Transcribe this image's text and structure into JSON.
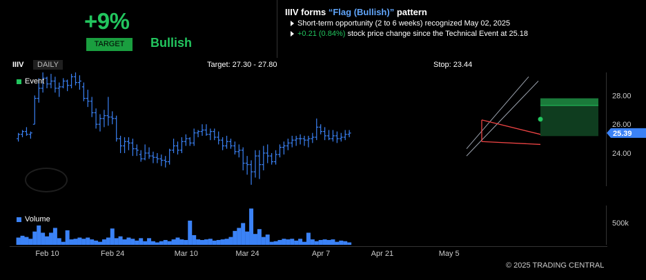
{
  "header": {
    "target_pct": "+9%",
    "target_badge": "TARGET",
    "sentiment": "Bullish",
    "title_prefix": "IIIV forms ",
    "title_pattern": "“Flag (Bullish)”",
    "title_suffix": " pattern",
    "line1": "Short-term opportunity (2 to 6 weeks) recognized May 02, 2025",
    "line2_change": "+0.21 (0.84%)",
    "line2_rest": " stock price change since the Technical Event at 25.18"
  },
  "chart_bar": {
    "ticker": "IIIV",
    "period": "DAILY",
    "target_text": "Target: 27.30 - 27.80",
    "stop_text": "Stop: 23.44"
  },
  "legend": {
    "event": "Event",
    "volume": "Volume"
  },
  "copyright": "© 2025 TRADING CENTRAL",
  "colors": {
    "bar": "#3b82f6",
    "up": "#22c55e",
    "pattern": "#ef4444",
    "channel": "#9ca3af"
  },
  "chart_data": {
    "type": "bar",
    "title": "",
    "x_ticks": [
      "Feb 10",
      "Feb 24",
      "Mar 10",
      "Mar 24",
      "Apr 7",
      "Apr 21",
      "May 5"
    ],
    "price_axis": {
      "ticks": [
        "24.00",
        "26.00",
        "28.00"
      ],
      "ylim": [
        21.7,
        29.6
      ],
      "current_label": "25.39"
    },
    "volume_axis": {
      "ticks": [
        "500k"
      ]
    },
    "ohlc": [
      [
        25.0,
        25.4,
        24.8,
        25.3
      ],
      [
        25.3,
        25.6,
        25.1,
        25.5
      ],
      [
        25.5,
        25.8,
        25.2,
        25.3
      ],
      [
        25.3,
        25.5,
        25.0,
        25.4
      ],
      [
        26.0,
        28.0,
        26.0,
        27.8
      ],
      [
        27.8,
        29.2,
        27.5,
        28.5
      ],
      [
        28.5,
        29.6,
        28.2,
        29.2
      ],
      [
        29.2,
        29.3,
        28.5,
        28.8
      ],
      [
        28.8,
        29.5,
        28.5,
        29.0
      ],
      [
        29.0,
        29.3,
        28.2,
        28.5
      ],
      [
        28.5,
        28.9,
        27.9,
        28.6
      ],
      [
        28.6,
        29.2,
        28.5,
        29.0
      ],
      [
        29.0,
        29.1,
        28.3,
        28.7
      ],
      [
        28.7,
        29.5,
        28.5,
        29.3
      ],
      [
        29.3,
        29.6,
        28.7,
        28.9
      ],
      [
        28.9,
        29.4,
        28.4,
        29.0
      ],
      [
        28.6,
        28.9,
        27.6,
        27.8
      ],
      [
        27.8,
        28.4,
        27.2,
        27.6
      ],
      [
        27.6,
        27.9,
        26.5,
        26.8
      ],
      [
        26.8,
        27.1,
        25.7,
        26.0
      ],
      [
        26.0,
        26.7,
        25.5,
        26.4
      ],
      [
        26.4,
        27.0,
        25.8,
        26.6
      ],
      [
        26.6,
        27.9,
        25.9,
        26.5
      ],
      [
        26.5,
        26.9,
        26.0,
        26.4
      ],
      [
        26.4,
        26.6,
        24.8,
        25.0
      ],
      [
        25.0,
        25.2,
        24.0,
        24.5
      ],
      [
        24.5,
        25.1,
        24.0,
        24.8
      ],
      [
        24.8,
        25.1,
        24.2,
        24.7
      ],
      [
        24.7,
        25.0,
        23.8,
        24.3
      ],
      [
        24.3,
        24.6,
        23.8,
        24.2
      ],
      [
        23.9,
        24.2,
        23.4,
        23.6
      ],
      [
        23.6,
        24.6,
        23.5,
        24.0
      ],
      [
        24.0,
        24.4,
        23.6,
        23.8
      ],
      [
        23.8,
        24.1,
        23.3,
        23.7
      ],
      [
        23.7,
        24.0,
        23.3,
        23.6
      ],
      [
        23.6,
        23.9,
        23.1,
        23.5
      ],
      [
        23.5,
        23.8,
        23.0,
        23.4
      ],
      [
        23.4,
        24.3,
        23.2,
        24.2
      ],
      [
        24.2,
        25.0,
        24.0,
        24.5
      ],
      [
        24.5,
        24.8,
        23.9,
        24.2
      ],
      [
        24.2,
        25.1,
        24.0,
        24.8
      ],
      [
        24.8,
        25.3,
        24.5,
        25.0
      ],
      [
        25.0,
        25.1,
        24.5,
        24.7
      ],
      [
        24.7,
        25.7,
        24.5,
        25.4
      ],
      [
        25.4,
        25.6,
        25.1,
        25.5
      ],
      [
        25.5,
        26.0,
        25.2,
        25.6
      ],
      [
        25.6,
        26.0,
        25.2,
        25.3
      ],
      [
        25.3,
        25.7,
        24.9,
        25.5
      ],
      [
        25.5,
        25.7,
        24.9,
        25.1
      ],
      [
        25.1,
        25.5,
        24.6,
        24.9
      ],
      [
        24.9,
        25.1,
        24.2,
        24.5
      ],
      [
        24.5,
        25.2,
        24.3,
        24.8
      ],
      [
        24.8,
        25.0,
        24.3,
        24.5
      ],
      [
        24.5,
        24.8,
        23.9,
        24.1
      ],
      [
        24.1,
        24.6,
        23.7,
        24.2
      ],
      [
        24.2,
        24.4,
        22.8,
        23.3
      ],
      [
        23.3,
        23.8,
        22.5,
        23.2
      ],
      [
        23.2,
        23.5,
        21.8,
        22.7
      ],
      [
        22.7,
        24.2,
        22.3,
        23.8
      ],
      [
        23.8,
        24.2,
        22.2,
        23.2
      ],
      [
        23.2,
        24.5,
        22.8,
        24.0
      ],
      [
        24.0,
        24.6,
        23.3,
        23.8
      ],
      [
        23.8,
        24.0,
        23.2,
        23.4
      ],
      [
        23.4,
        24.2,
        23.2,
        23.9
      ],
      [
        23.9,
        24.6,
        23.7,
        24.4
      ],
      [
        24.4,
        24.8,
        23.9,
        24.5
      ],
      [
        24.5,
        25.0,
        24.2,
        24.7
      ],
      [
        24.7,
        25.2,
        24.4,
        24.9
      ],
      [
        24.9,
        25.2,
        24.5,
        25.0
      ],
      [
        25.0,
        25.3,
        24.6,
        25.0
      ],
      [
        25.0,
        25.2,
        24.5,
        24.9
      ],
      [
        24.9,
        25.2,
        24.4,
        25.0
      ],
      [
        25.0,
        25.4,
        24.7,
        25.1
      ],
      [
        25.1,
        26.4,
        24.9,
        25.8
      ],
      [
        25.8,
        26.0,
        25.3,
        25.5
      ],
      [
        25.5,
        25.8,
        24.9,
        25.2
      ],
      [
        25.2,
        25.6,
        24.9,
        25.0
      ],
      [
        25.0,
        25.6,
        24.8,
        25.2
      ],
      [
        25.2,
        25.5,
        24.7,
        25.0
      ],
      [
        25.0,
        25.4,
        24.8,
        25.1
      ],
      [
        25.1,
        25.6,
        24.9,
        25.3
      ],
      [
        25.3,
        25.6,
        25.1,
        25.39
      ]
    ],
    "volume": [
      12,
      15,
      13,
      10,
      22,
      32,
      20,
      14,
      20,
      28,
      11,
      5,
      24,
      9,
      10,
      12,
      10,
      12,
      9,
      7,
      5,
      9,
      12,
      27,
      11,
      14,
      9,
      12,
      10,
      7,
      11,
      6,
      11,
      6,
      4,
      6,
      8,
      6,
      9,
      12,
      9,
      8,
      40,
      16,
      9,
      8,
      9,
      10,
      7,
      8,
      9,
      10,
      13,
      23,
      28,
      36,
      22,
      60,
      18,
      26,
      13,
      17,
      5,
      6,
      8,
      10,
      9,
      10,
      7,
      10,
      5,
      20,
      9,
      6,
      8,
      9,
      8,
      9,
      5,
      7,
      6,
      4
    ],
    "volume_max": 65
  }
}
